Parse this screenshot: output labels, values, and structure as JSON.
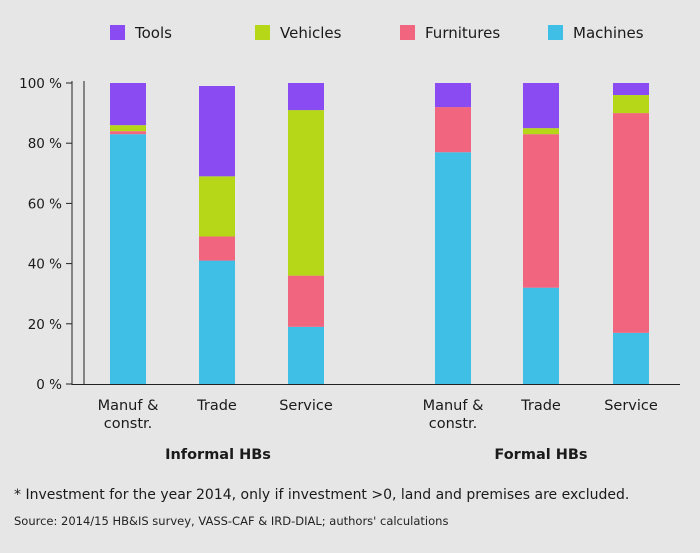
{
  "chart_data": {
    "type": "bar",
    "stacked": true,
    "legend": [
      {
        "name": "Tools",
        "color": "#8a4cf2"
      },
      {
        "name": "Vehicles",
        "color": "#b5d718"
      },
      {
        "name": "Furnitures",
        "color": "#f2657f"
      },
      {
        "name": "Machines",
        "color": "#3fbfe6"
      }
    ],
    "stack_order": [
      "Machines",
      "Furnitures",
      "Vehicles",
      "Tools"
    ],
    "y_ticks": [
      "0 %",
      "20 %",
      "40 %",
      "60 %",
      "80 %",
      "100 %"
    ],
    "ylim": [
      0,
      100
    ],
    "groups": [
      {
        "label": "Informal HBs",
        "categories": [
          {
            "label": [
              "Manuf &",
              "constr."
            ],
            "values": {
              "Machines": 83,
              "Furnitures": 1,
              "Vehicles": 2,
              "Tools": 14
            }
          },
          {
            "label": [
              "Trade"
            ],
            "values": {
              "Machines": 41,
              "Furnitures": 8,
              "Vehicles": 20,
              "Tools": 30
            }
          },
          {
            "label": [
              "Service"
            ],
            "values": {
              "Machines": 19,
              "Furnitures": 17,
              "Vehicles": 55,
              "Tools": 9
            }
          }
        ]
      },
      {
        "label": "Formal HBs",
        "categories": [
          {
            "label": [
              "Manuf &",
              "constr."
            ],
            "values": {
              "Machines": 77,
              "Furnitures": 15,
              "Vehicles": 0,
              "Tools": 8
            }
          },
          {
            "label": [
              "Trade"
            ],
            "values": {
              "Machines": 32,
              "Furnitures": 51,
              "Vehicles": 2,
              "Tools": 15
            }
          },
          {
            "label": [
              "Service"
            ],
            "values": {
              "Machines": 17,
              "Furnitures": 73,
              "Vehicles": 6,
              "Tools": 4
            }
          }
        ]
      }
    ]
  },
  "footnote": "* Investment for the year 2014, only if investment >0, land and premises are excluded.",
  "source": "Source: 2014/15 HB&IS survey, VASS-CAF & IRD-DIAL; authors' calculations"
}
